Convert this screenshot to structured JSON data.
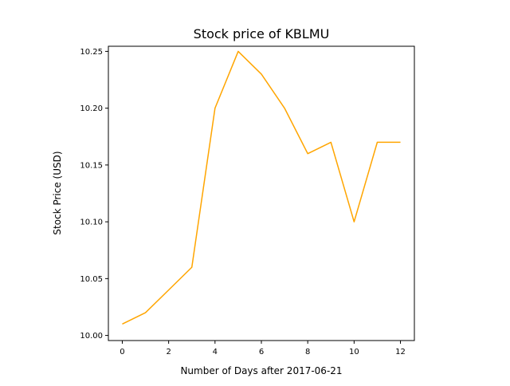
{
  "chart_data": {
    "type": "line",
    "title": "Stock price of KBLMU",
    "xlabel": "Number of Days after 2017-06-21",
    "ylabel": "Stock Price (USD)",
    "x_ticks": [
      "0",
      "2",
      "4",
      "6",
      "8",
      "10",
      "12"
    ],
    "y_ticks": [
      "10.00",
      "10.05",
      "10.10",
      "10.15",
      "10.20",
      "10.25"
    ],
    "x_tick_values": [
      0,
      2,
      4,
      6,
      8,
      10,
      12
    ],
    "y_tick_values": [
      10.0,
      10.05,
      10.1,
      10.15,
      10.2,
      10.25
    ],
    "xlim": [
      -0.6,
      12.6
    ],
    "ylim": [
      9.9955,
      10.2545
    ],
    "grid": false,
    "series": [
      {
        "color": "#ffa500",
        "x": [
          0,
          1,
          2,
          3,
          4,
          5,
          6,
          7,
          8,
          9,
          10,
          11,
          12
        ],
        "y": [
          10.01,
          10.02,
          10.04,
          10.06,
          10.2,
          10.25,
          10.23,
          10.2,
          10.16,
          10.17,
          10.1,
          10.17,
          10.17
        ]
      }
    ]
  }
}
